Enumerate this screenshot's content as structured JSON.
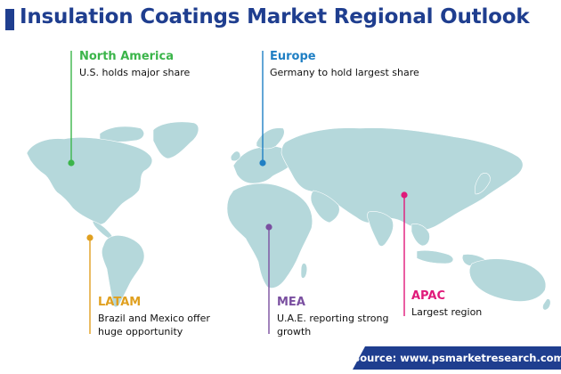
{
  "title": "Insulation Coatings Market Regional Outlook",
  "colors": {
    "brand": "#1f3e8f",
    "land": "#b5d8db",
    "north_america": "#3bb54a",
    "europe": "#1f7fc4",
    "latam": "#e0a020",
    "mea": "#7a4fa0",
    "apac": "#e01a7a"
  },
  "regions": {
    "north_america": {
      "name": "North America",
      "description": [
        "U.S. holds major share"
      ]
    },
    "europe": {
      "name": "Europe",
      "description": [
        "Germany to hold largest share"
      ]
    },
    "latam": {
      "name": "LATAM",
      "description": [
        "Brazil and Mexico offer",
        "huge opportunity"
      ]
    },
    "mea": {
      "name": "MEA",
      "description": [
        "U.A.E. reporting strong",
        "growth"
      ]
    },
    "apac": {
      "name": "APAC",
      "description": [
        "Largest region"
      ]
    }
  },
  "source": "Source: www.psmarketresearch.com"
}
